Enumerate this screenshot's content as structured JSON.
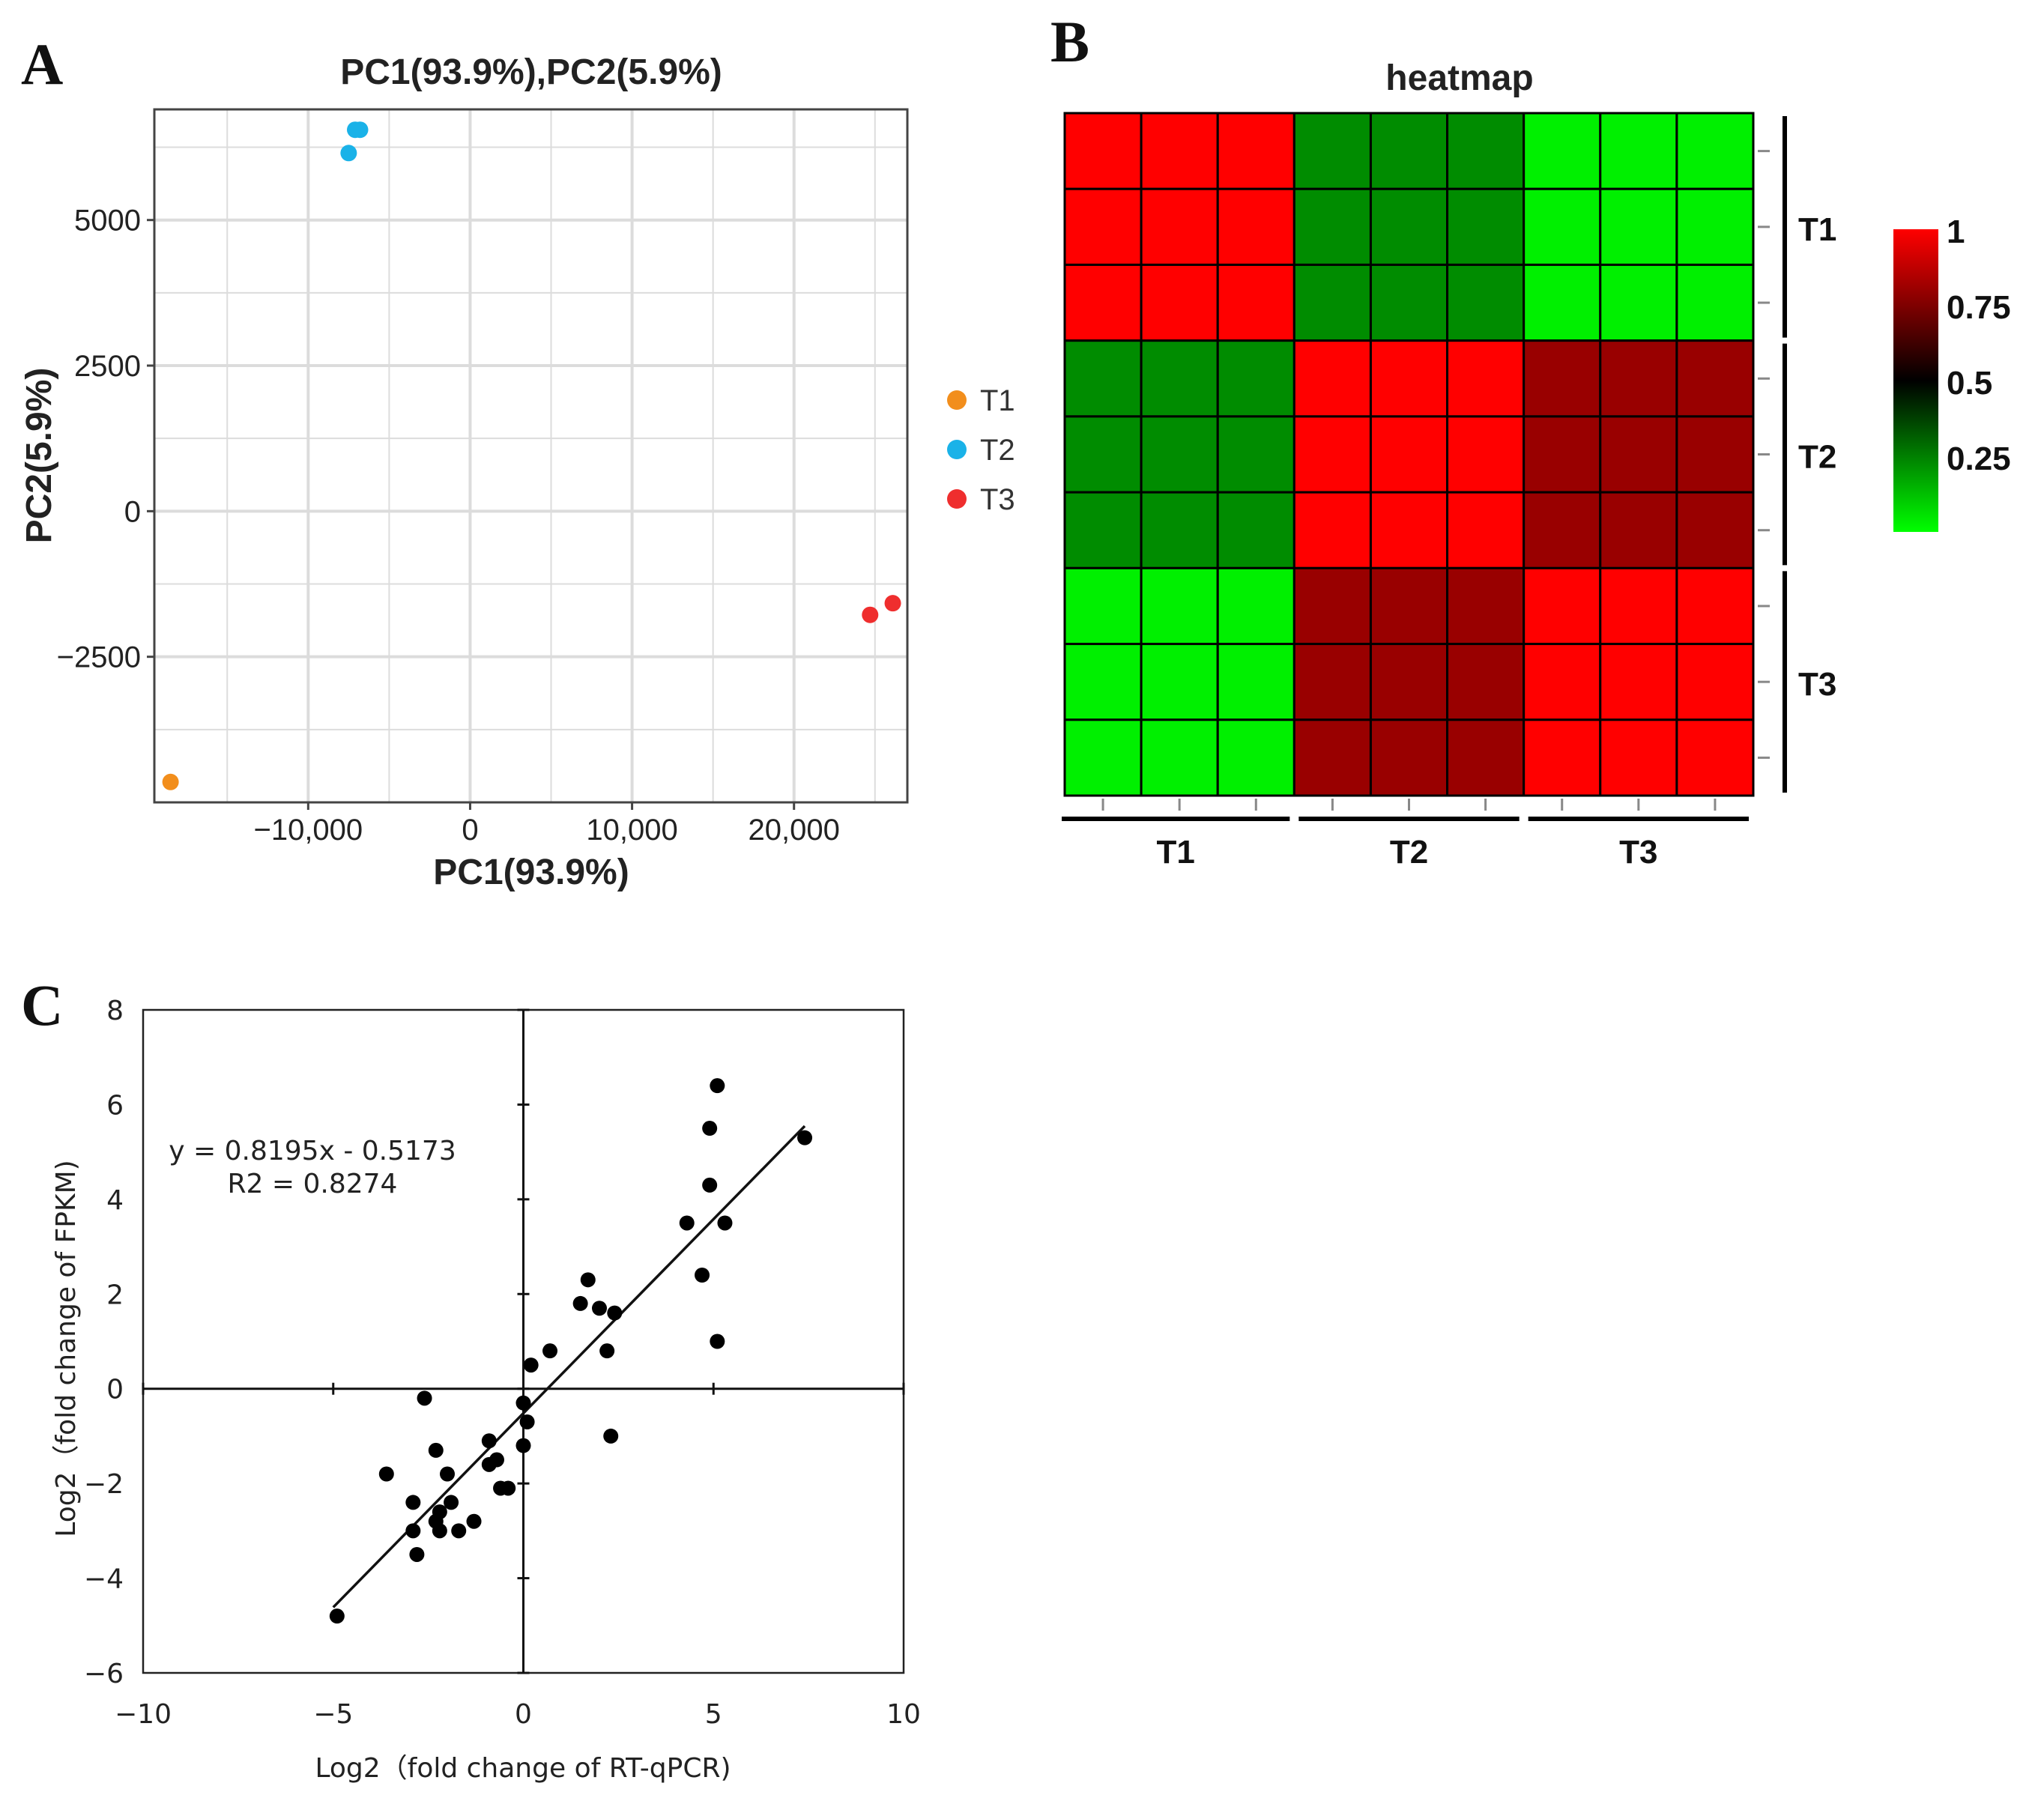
{
  "panels": {
    "a": {
      "letter": "A"
    },
    "b": {
      "letter": "B"
    },
    "c": {
      "letter": "C"
    }
  },
  "chart_data": [
    {
      "id": "pca",
      "type": "scatter",
      "title": "PC1(93.9%),PC2(5.9%)",
      "xlabel": "PC1(93.9%)",
      "ylabel": "PC2(5.9%)",
      "xlim": [
        -19500,
        27000
      ],
      "ylim": [
        -5000,
        6900
      ],
      "xticks": [
        -10000,
        0,
        10000,
        20000
      ],
      "xtick_labels": [
        "−10,000",
        "0",
        "10,000",
        "20,000"
      ],
      "yticks": [
        5000,
        2500,
        0,
        -2500
      ],
      "ytick_labels": [
        "5000",
        "2500",
        "0",
        "−2500"
      ],
      "grid": true,
      "legend_position": "right",
      "series": [
        {
          "name": "T1",
          "color": "#f28e1c",
          "points": [
            [
              -18500,
              -4650
            ]
          ]
        },
        {
          "name": "T2",
          "color": "#1ab2e8",
          "points": [
            [
              -7500,
              6150
            ],
            [
              -7100,
              6550
            ],
            [
              -6800,
              6550
            ]
          ]
        },
        {
          "name": "T3",
          "color": "#ef2e2e",
          "points": [
            [
              24700,
              -1780
            ],
            [
              26100,
              -1580
            ]
          ]
        }
      ]
    },
    {
      "id": "heatmap",
      "type": "heatmap",
      "title": "heatmap",
      "row_groups": [
        "T1",
        "T2",
        "T3"
      ],
      "col_groups": [
        "T1",
        "T2",
        "T3"
      ],
      "group_size": 3,
      "block_values": [
        [
          1.0,
          0.38,
          0.05
        ],
        [
          0.38,
          1.0,
          0.7
        ],
        [
          0.05,
          0.7,
          1.0
        ]
      ],
      "colorbar": {
        "ticks": [
          1,
          0.75,
          0.5,
          0.25
        ],
        "tick_labels": [
          "1",
          "0.75",
          "0.5",
          "0.25"
        ],
        "low_color": "#00ff00",
        "mid_color": "#000000",
        "high_color": "#ff0000"
      }
    },
    {
      "id": "correlation",
      "type": "scatter",
      "xlabel": "Log2（fold change of RT-qPCR)",
      "ylabel": "Log2（fold change of FPKM)",
      "xlim": [
        -10,
        10
      ],
      "ylim": [
        -6,
        8
      ],
      "xticks": [
        -10,
        -5,
        0,
        5,
        10
      ],
      "xtick_labels": [
        "−10",
        "−5",
        "0",
        "5",
        "10"
      ],
      "yticks": [
        8,
        6,
        4,
        2,
        0,
        -2,
        -4,
        -6
      ],
      "ytick_labels": [
        "8",
        "6",
        "4",
        "2",
        "0",
        "−2",
        "−4",
        "−6"
      ],
      "equation": "y = 0.8195x - 0.5173",
      "r2": "R2 = 0.8274",
      "trendline": {
        "slope": 0.8195,
        "intercept": -0.5173,
        "x_range": [
          -5,
          7.4
        ]
      },
      "points": [
        [
          -4.9,
          -4.8
        ],
        [
          -3.6,
          -1.8
        ],
        [
          -2.9,
          -2.4
        ],
        [
          -2.9,
          -3.0
        ],
        [
          -2.8,
          -3.5
        ],
        [
          -2.6,
          -0.2
        ],
        [
          -2.3,
          -1.3
        ],
        [
          -2.3,
          -2.8
        ],
        [
          -2.2,
          -3.0
        ],
        [
          -2.2,
          -2.6
        ],
        [
          -2.0,
          -1.8
        ],
        [
          -1.9,
          -2.4
        ],
        [
          -1.7,
          -3.0
        ],
        [
          -1.3,
          -2.8
        ],
        [
          -0.9,
          -1.1
        ],
        [
          -0.9,
          -1.6
        ],
        [
          -0.7,
          -1.5
        ],
        [
          -0.6,
          -2.1
        ],
        [
          -0.4,
          -2.1
        ],
        [
          0.0,
          -0.3
        ],
        [
          0.0,
          -1.2
        ],
        [
          0.1,
          -0.7
        ],
        [
          0.2,
          0.5
        ],
        [
          0.7,
          0.8
        ],
        [
          1.5,
          1.8
        ],
        [
          1.7,
          2.3
        ],
        [
          2.0,
          1.7
        ],
        [
          2.2,
          0.8
        ],
        [
          2.3,
          -1.0
        ],
        [
          2.4,
          1.6
        ],
        [
          4.3,
          3.5
        ],
        [
          4.7,
          2.4
        ],
        [
          4.9,
          4.3
        ],
        [
          4.9,
          5.5
        ],
        [
          5.1,
          1.0
        ],
        [
          5.1,
          6.4
        ],
        [
          5.3,
          3.5
        ],
        [
          7.4,
          5.3
        ]
      ]
    }
  ]
}
